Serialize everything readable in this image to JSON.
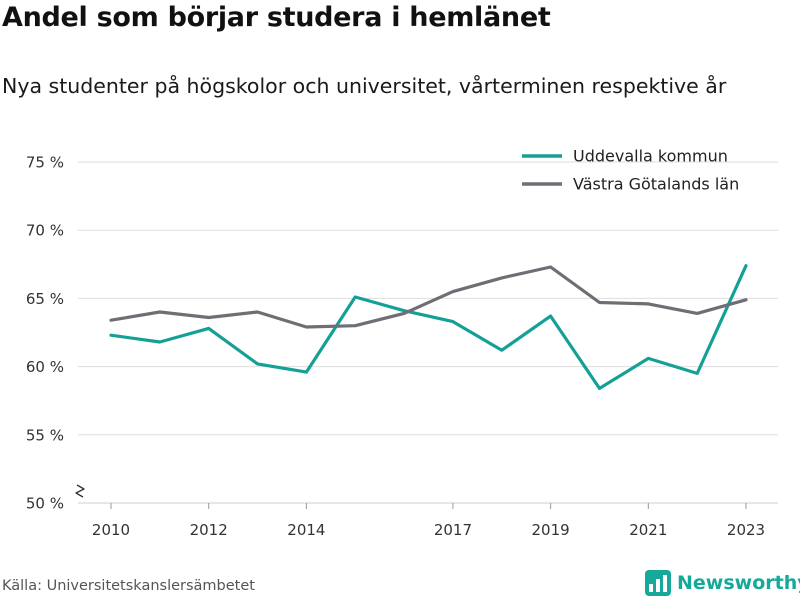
{
  "title": "Andel som börjar studera i hemlänet",
  "subtitle": "Nya studenter på högskolor och universitet, vårterminen respektive år",
  "source": "Källa: Universitetskanslersämbetet",
  "brand": {
    "name": "Newsworthy",
    "icon": "newsworthy-logo-icon",
    "color": "#16a99a"
  },
  "chart_data": {
    "type": "line",
    "title": "Andel som börjar studera i hemlänet",
    "subtitle": "Nya studenter på högskolor och universitet, vårterminen respektive år",
    "x": [
      2010,
      2011,
      2012,
      2013,
      2014,
      2015,
      2016,
      2017,
      2018,
      2019,
      2020,
      2021,
      2022,
      2023
    ],
    "x_ticks": [
      2010,
      2012,
      2014,
      2017,
      2019,
      2021,
      2023
    ],
    "y_ticks": [
      50,
      55,
      60,
      65,
      70,
      75
    ],
    "y_tick_labels": [
      "50 %",
      "55 %",
      "60 %",
      "65 %",
      "70 %",
      "75 %"
    ],
    "ylim": [
      50,
      75
    ],
    "y_axis_break": true,
    "grid": true,
    "legend_position": "top-right",
    "series": [
      {
        "name": "Uddevalla kommun",
        "color": "#15a097",
        "values": [
          62.3,
          61.8,
          62.8,
          60.2,
          59.6,
          65.1,
          64.1,
          63.3,
          61.2,
          63.7,
          58.4,
          60.6,
          59.5,
          67.4
        ]
      },
      {
        "name": "Västra Götalands län",
        "color": "#6f6e75",
        "values": [
          63.4,
          64.0,
          63.6,
          64.0,
          62.9,
          63.0,
          63.9,
          65.5,
          66.5,
          67.3,
          64.7,
          64.6,
          63.9,
          64.9
        ]
      }
    ]
  }
}
